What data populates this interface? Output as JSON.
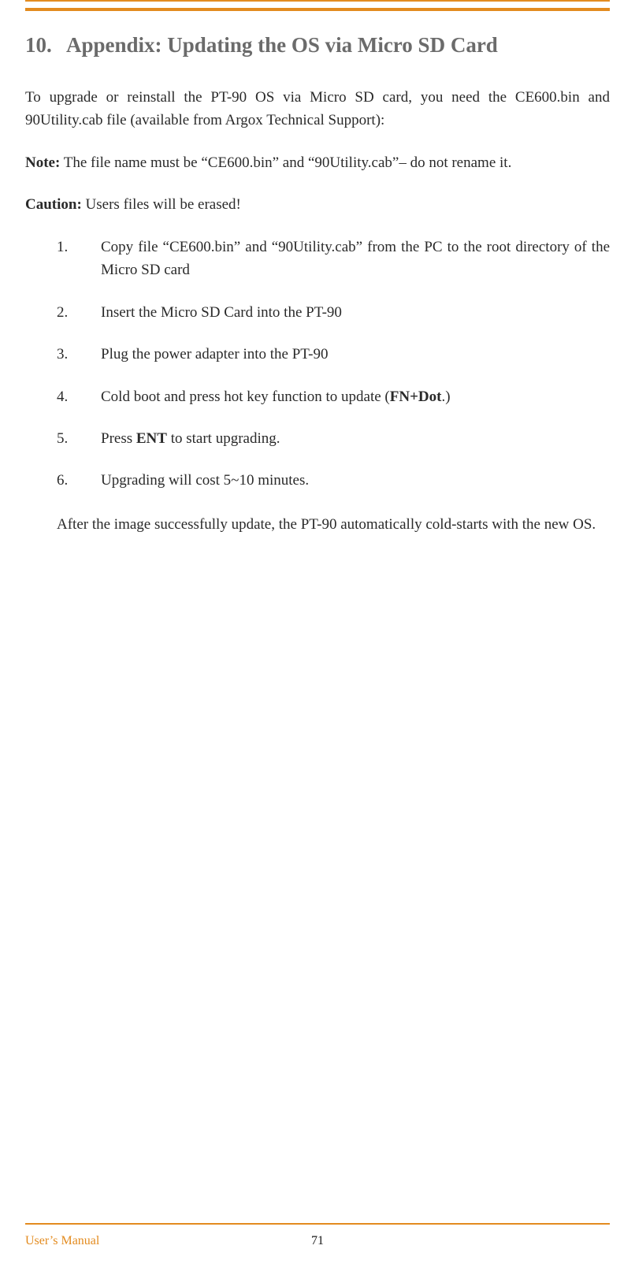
{
  "heading": {
    "number": "10.",
    "title": "Appendix: Updating the OS via Micro SD Card"
  },
  "intro": "To upgrade or reinstall the PT-90 OS via Micro SD card, you need the CE600.bin and 90Utility.cab file (available from Argox Technical Support):",
  "note": {
    "label": "Note:",
    "text": " The file name must be “CE600.bin” and “90Utility.cab”– do not rename it."
  },
  "caution": {
    "label": "Caution:",
    "text": " Users files will be erased!"
  },
  "steps": [
    {
      "num": "1.",
      "text": "Copy file “CE600.bin” and “90Utility.cab” from the PC to the root directory of the Micro SD card"
    },
    {
      "num": "2.",
      "text": "Insert the Micro SD Card into the PT-90"
    },
    {
      "num": "3.",
      "text": "Plug the power adapter into the PT-90"
    },
    {
      "num": "4.",
      "pre": "Cold boot and press hot key function to update (",
      "bold": "FN+Dot",
      "post": ".)"
    },
    {
      "num": "5.",
      "pre": "Press ",
      "bold": "ENT",
      "post": " to start upgrading."
    },
    {
      "num": "6.",
      "text": "Upgrading will cost 5~10 minutes."
    }
  ],
  "after": "After the image successfully update, the PT-90 automatically cold-starts with the new OS.",
  "footer": {
    "left": "User’s Manual",
    "page": "71"
  },
  "colors": {
    "accent": "#e38b1f",
    "heading_gray": "#6b6b6b",
    "body": "#2a2a2a"
  }
}
